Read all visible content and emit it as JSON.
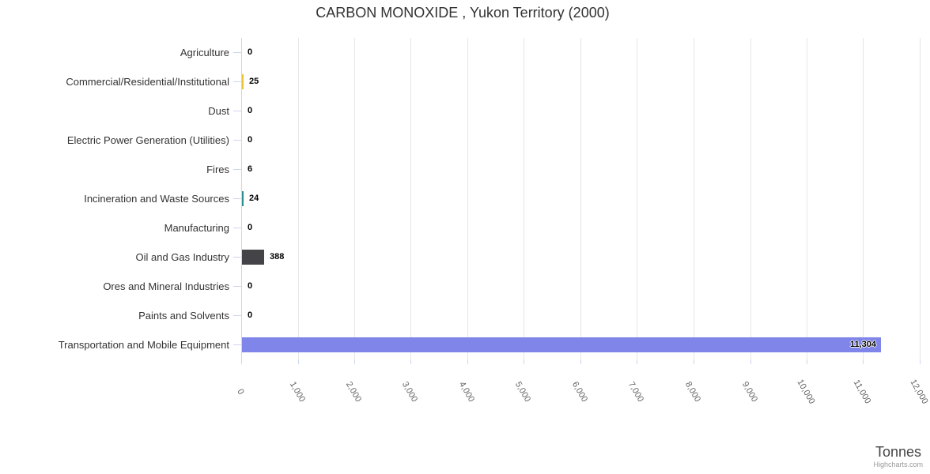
{
  "title": "CARBON MONOXIDE , Yukon Territory (2000)",
  "credits": "Highcharts.com",
  "x_axis": {
    "title": "Tonnes"
  },
  "colors": {
    "axis_line": "#ccd6eb",
    "gridline": "#e6e6e6",
    "title_text": "#333333",
    "category_text": "#333333",
    "value_text": "#000000",
    "tick_text": "#666666",
    "credits_text": "#999999"
  },
  "chart_data": {
    "type": "bar",
    "orientation": "horizontal",
    "title": "CARBON MONOXIDE , Yukon Territory (2000)",
    "categories": [
      "Agriculture",
      "Commercial/Residential/Institutional",
      "Dust",
      "Electric Power Generation (Utilities)",
      "Fires",
      "Incineration and Waste Sources",
      "Manufacturing",
      "Oil and Gas Industry",
      "Ores and Mineral Industries",
      "Paints and Solvents",
      "Transportation and Mobile Equipment"
    ],
    "values": [
      0,
      25,
      0,
      0,
      6,
      24,
      0,
      388,
      0,
      0,
      11304
    ],
    "value_labels": [
      "0",
      "25",
      "0",
      "0",
      "6",
      "24",
      "0",
      "388",
      "0",
      "0",
      "11,304"
    ],
    "bar_colors": [
      null,
      "#eac33d",
      null,
      null,
      null,
      "#2b908f",
      null,
      "#434348",
      null,
      null,
      "#8085e9"
    ],
    "xlabel": "Tonnes",
    "ylabel": "",
    "xlim": [
      0,
      12000
    ],
    "x_tick_interval": 1000,
    "x_tick_labels": [
      "0",
      "1,000",
      "2,000",
      "3,000",
      "4,000",
      "5,000",
      "6,000",
      "7,000",
      "8,000",
      "9,000",
      "10,000",
      "11,000",
      "12,000"
    ],
    "x_tick_label_rotation": 60,
    "grid": true,
    "legend": false
  }
}
